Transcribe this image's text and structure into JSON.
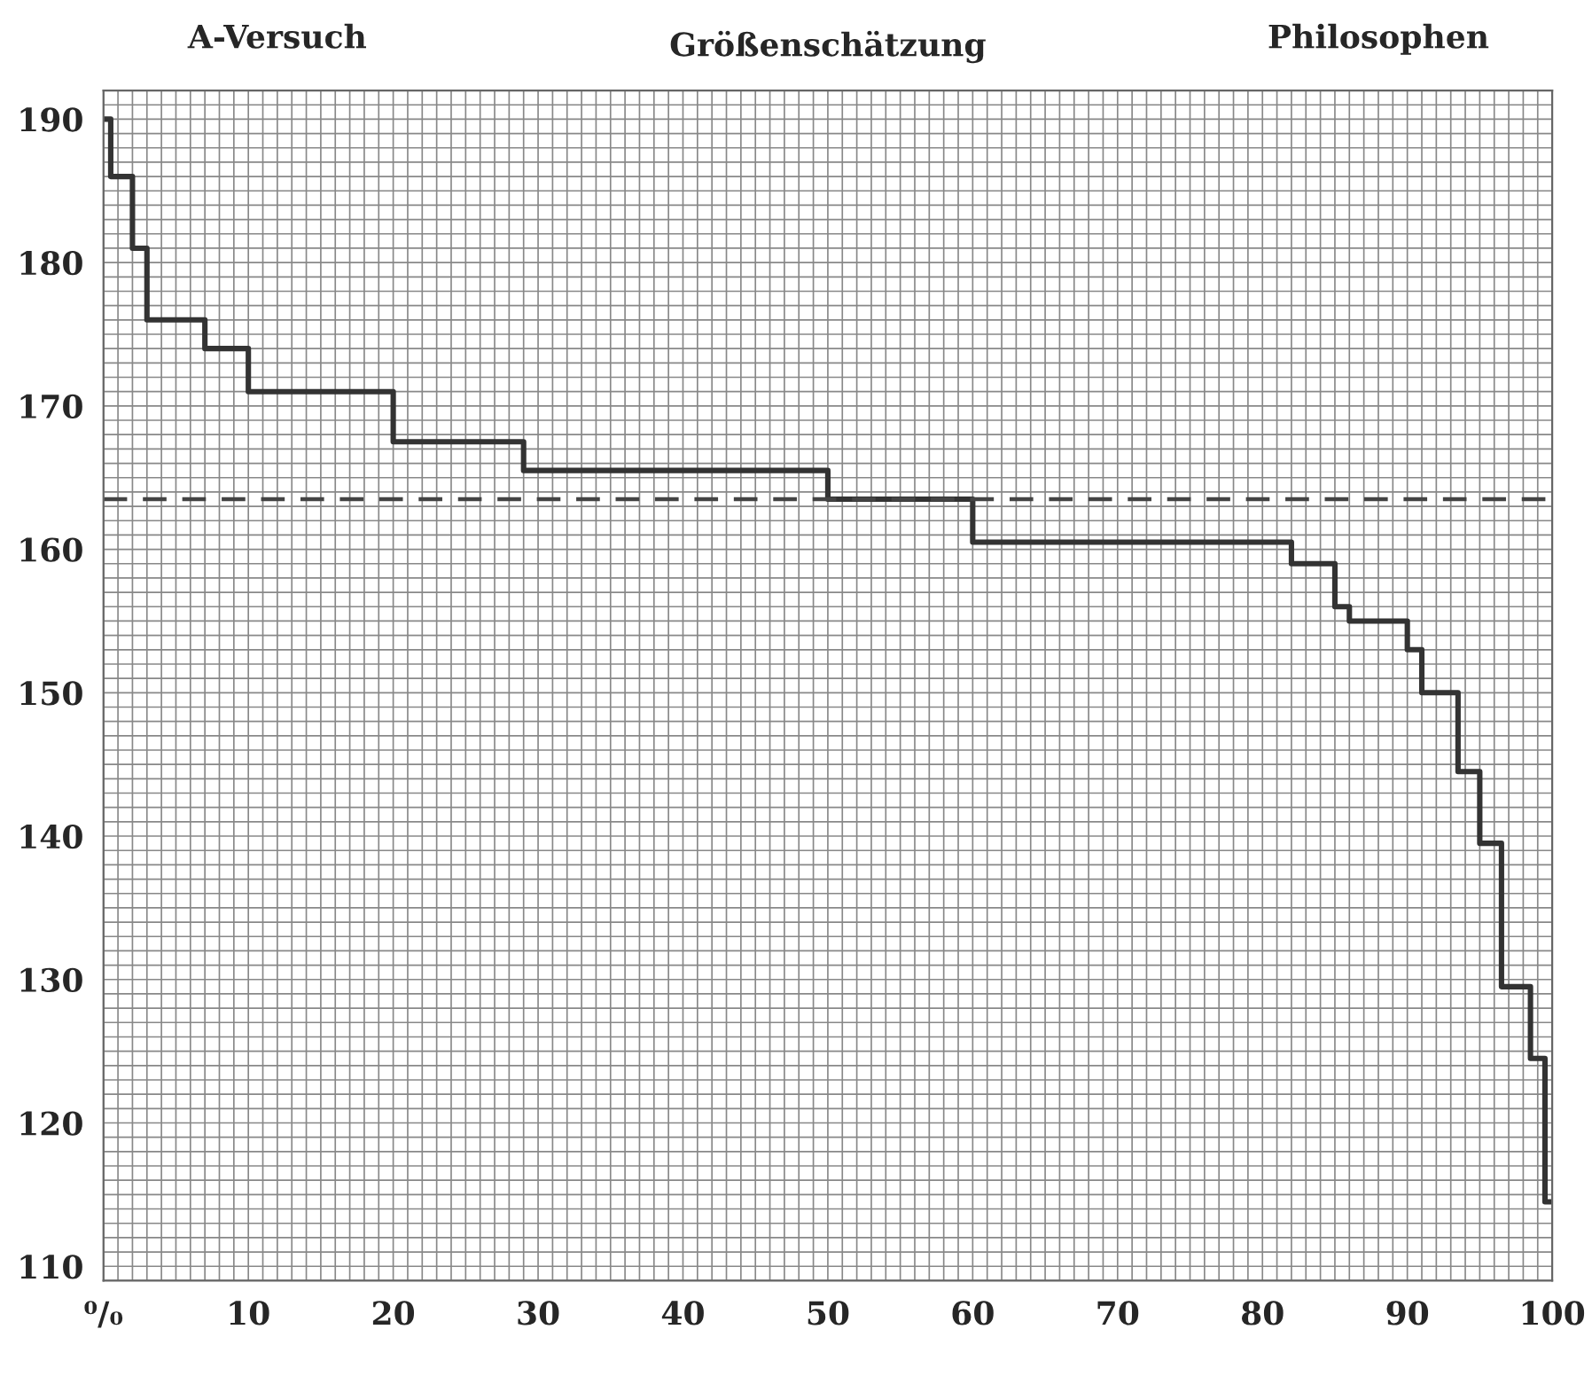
{
  "chart_data": {
    "type": "step",
    "title": "Größenschätzung",
    "annotations": [
      "A-Versuch",
      "Philosophen"
    ],
    "x": [
      0,
      0.5,
      2,
      3,
      7,
      10,
      20,
      29,
      50,
      60,
      82,
      85,
      86,
      90,
      91,
      93.5,
      95,
      96.5,
      98.5,
      99.5,
      100
    ],
    "series": [
      {
        "color": "#333333",
        "values": [
          190,
          186,
          181,
          176,
          174,
          171,
          167.5,
          165.5,
          163.5,
          160.5,
          159,
          156,
          155,
          153,
          150,
          144.5,
          139.5,
          129.5,
          124.5,
          114.5,
          114.5
        ]
      }
    ],
    "xlim": [
      0,
      100
    ],
    "ylim": [
      109,
      192
    ],
    "xticks": [
      {
        "value": 0,
        "label": "⁰/₀"
      },
      10,
      20,
      30,
      40,
      50,
      60,
      70,
      80,
      90,
      100
    ],
    "yticks": [
      110,
      120,
      130,
      140,
      150,
      160,
      170,
      180,
      190
    ],
    "ref_lines": [
      {
        "axis": "y",
        "value": 163.5,
        "color": "#444444",
        "line_style": "dashed"
      }
    ],
    "grid": true,
    "legend": false
  }
}
